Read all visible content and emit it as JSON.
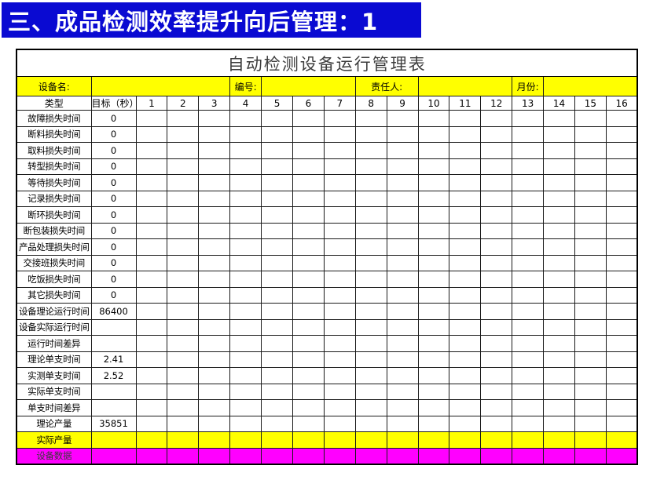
{
  "banner": {
    "title": "三、成品检测效率提升向后管理：1"
  },
  "colors": {
    "banner_bg": "#0a0ad2",
    "banner_fg": "#ffffff",
    "info_row_bg": "#ffff00",
    "actual_output_row_bg": "#ffff00",
    "device_data_row_bg": "#ff00ff"
  },
  "table": {
    "title": "自动检测设备运行管理表",
    "info": {
      "device_label": "设备名:",
      "device_value": "",
      "number_label": "编号:",
      "number_value": "",
      "owner_label": "责任人:",
      "owner_value": "",
      "month_label": "月份:",
      "month_value": ""
    },
    "header": {
      "type_label": "类型",
      "target_label": "目标（秒）",
      "day_columns": [
        "1",
        "2",
        "3",
        "4",
        "5",
        "6",
        "7",
        "8",
        "9",
        "10",
        "11",
        "12",
        "13",
        "14",
        "15",
        "16"
      ]
    },
    "rows": [
      {
        "label": "故障损失时间",
        "target": "0",
        "bg": ""
      },
      {
        "label": "断料损失时间",
        "target": "0",
        "bg": ""
      },
      {
        "label": "取料损失时间",
        "target": "0",
        "bg": ""
      },
      {
        "label": "转型损失时间",
        "target": "0",
        "bg": ""
      },
      {
        "label": "等待损失时间",
        "target": "0",
        "bg": ""
      },
      {
        "label": "记录损失时间",
        "target": "0",
        "bg": ""
      },
      {
        "label": "断环损失时间",
        "target": "0",
        "bg": ""
      },
      {
        "label": "断包装损失时间",
        "target": "0",
        "bg": ""
      },
      {
        "label": "产品处理损失时间",
        "target": "0",
        "bg": ""
      },
      {
        "label": "交接班损失时间",
        "target": "0",
        "bg": ""
      },
      {
        "label": "吃饭损失时间",
        "target": "0",
        "bg": ""
      },
      {
        "label": "其它损失时间",
        "target": "0",
        "bg": ""
      },
      {
        "label": "设备理论运行时间",
        "target": "86400",
        "bg": ""
      },
      {
        "label": "设备实际运行时间",
        "target": "",
        "bg": ""
      },
      {
        "label": "运行时间差异",
        "target": "",
        "bg": ""
      },
      {
        "label": "理论单支时间",
        "target": "2.41",
        "bg": ""
      },
      {
        "label": "实测单支时间",
        "target": "2.52",
        "bg": ""
      },
      {
        "label": "实际单支时间",
        "target": "",
        "bg": ""
      },
      {
        "label": "单支时间差异",
        "target": "",
        "bg": ""
      },
      {
        "label": "理论产量",
        "target": "35851",
        "bg": ""
      },
      {
        "label": "实际产量",
        "target": "",
        "bg": "yellow"
      },
      {
        "label": "设备数据",
        "target": "",
        "bg": "magenta"
      }
    ]
  }
}
